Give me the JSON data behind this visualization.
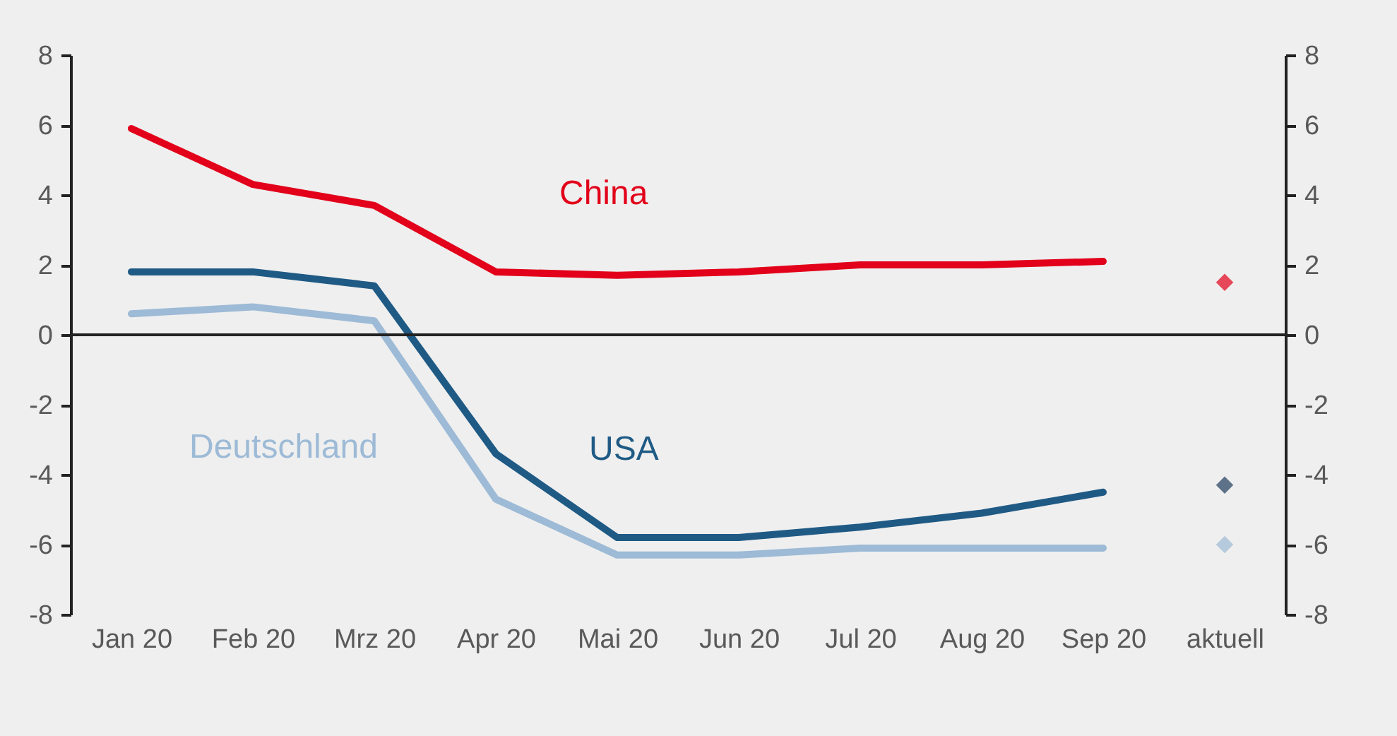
{
  "chart_data": {
    "type": "line",
    "categories": [
      "Jan 20",
      "Feb 20",
      "Mrz 20",
      "Apr 20",
      "Mai 20",
      "Jun 20",
      "Jul 20",
      "Aug 20",
      "Sep 20",
      "aktuell"
    ],
    "series": [
      {
        "name": "China",
        "color": "#e2001a",
        "values": [
          5.9,
          4.3,
          3.7,
          1.8,
          1.7,
          1.8,
          2.0,
          2.0,
          2.1,
          null
        ]
      },
      {
        "name": "USA",
        "color": "#1f5a85",
        "values": [
          1.8,
          1.8,
          1.4,
          -3.4,
          -5.8,
          -5.8,
          -5.5,
          -5.1,
          -4.5,
          null
        ]
      },
      {
        "name": "Deutschland",
        "color": "#9dbad6",
        "values": [
          0.6,
          0.8,
          0.4,
          -4.7,
          -6.3,
          -6.3,
          -6.1,
          -6.1,
          -6.1,
          null
        ]
      },
      {
        "type": "scatter",
        "marker": "diamond",
        "color": "#e2001a",
        "x": [
          "aktuell"
        ],
        "values": [
          1.5
        ]
      },
      {
        "type": "scatter",
        "marker": "diamond",
        "color": "#1f3d5c",
        "x": [
          "aktuell"
        ],
        "values": [
          -4.3
        ]
      },
      {
        "type": "scatter",
        "marker": "diamond",
        "color": "#9dbad6",
        "x": [
          "aktuell"
        ],
        "values": [
          -6.0
        ]
      }
    ],
    "ylim": [
      -8,
      8
    ],
    "yticks": [
      -8,
      -6,
      -4,
      -2,
      0,
      2,
      4,
      6,
      8
    ],
    "y2lim": [
      -8,
      8
    ],
    "y2ticks": [
      -8,
      -6,
      -4,
      -2,
      0,
      2,
      4,
      6,
      8
    ],
    "ref_lines": [
      {
        "axis": "y",
        "value": 0
      }
    ],
    "grid": false,
    "marker": "none",
    "line_style": "solid"
  }
}
